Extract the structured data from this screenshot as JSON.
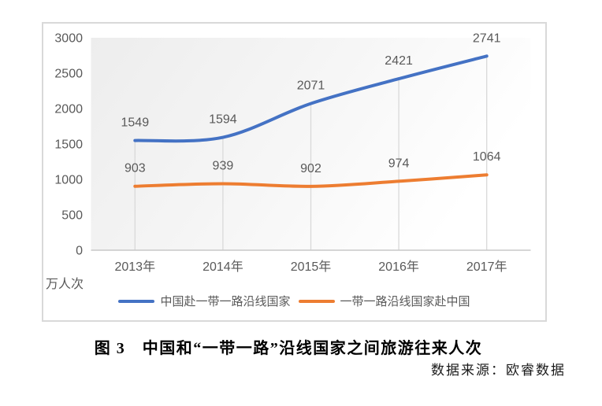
{
  "page": {
    "caption": "图 3　中国和“一带一路”沿线国家之间旅游往来人次",
    "source": "数据来源：欧睿数据"
  },
  "chart_data": {
    "type": "line",
    "title": "",
    "categories": [
      "2013年",
      "2014年",
      "2015年",
      "2016年",
      "2017年"
    ],
    "series": [
      {
        "name": "中国赴一带一路沿线国家",
        "color": "#4472C4",
        "values": [
          1549,
          1594,
          2071,
          2421,
          2741
        ]
      },
      {
        "name": "一带一路沿线国家赴中国",
        "color": "#ED7D31",
        "values": [
          903,
          939,
          902,
          974,
          1064
        ]
      }
    ],
    "xlabel": "",
    "ylabel": "万人次",
    "ylim": [
      0,
      3000
    ],
    "yticks": [
      0,
      500,
      1000,
      1500,
      2000,
      2500,
      3000
    ],
    "legend_position": "bottom",
    "grid": "vertical-drop-lines",
    "data_labels": true,
    "styles": {
      "axis_color": "#C8C8C8",
      "dropline_color": "#D9D9D9",
      "frame_border_color": "#D9D9D9",
      "text_color": "#595959",
      "plot_bg_from": "#EDEDED",
      "plot_bg_to": "#FFFFFF"
    }
  }
}
